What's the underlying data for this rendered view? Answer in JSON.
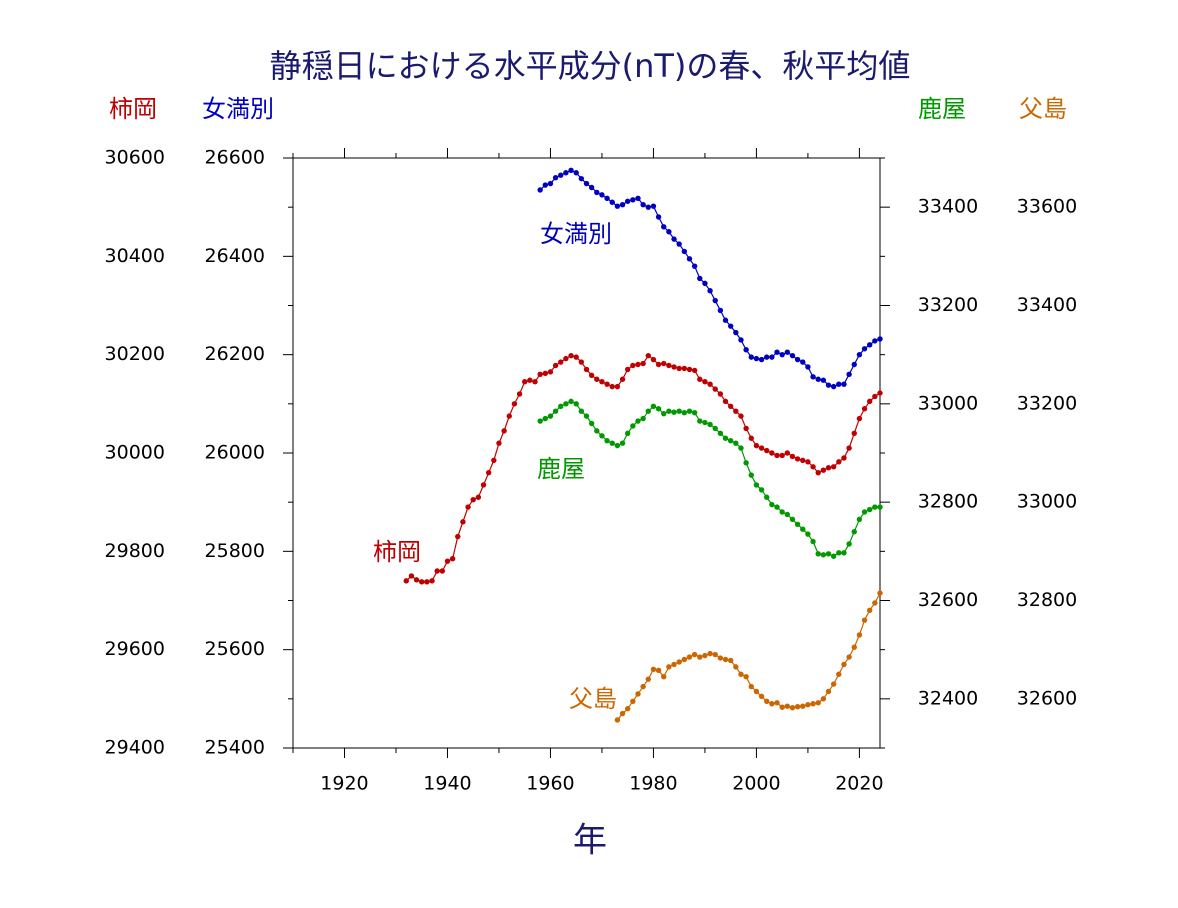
{
  "chart_data": {
    "type": "line",
    "title": "静穏日における水平成分(nT)の春、秋平均値",
    "xlabel": "年",
    "xlim": [
      1910,
      2024
    ],
    "xticks": [
      1920,
      1940,
      1960,
      1980,
      2000,
      2020
    ],
    "x": [
      1932,
      1933,
      1934,
      1935,
      1936,
      1937,
      1938,
      1939,
      1940,
      1941,
      1942,
      1943,
      1944,
      1945,
      1946,
      1947,
      1948,
      1949,
      1950,
      1951,
      1952,
      1953,
      1954,
      1955,
      1956,
      1957,
      1958,
      1959,
      1960,
      1961,
      1962,
      1963,
      1964,
      1965,
      1966,
      1967,
      1968,
      1969,
      1970,
      1971,
      1972,
      1973,
      1974,
      1975,
      1976,
      1977,
      1978,
      1979,
      1980,
      1981,
      1982,
      1983,
      1984,
      1985,
      1986,
      1987,
      1988,
      1989,
      1990,
      1991,
      1992,
      1993,
      1994,
      1995,
      1996,
      1997,
      1998,
      1999,
      2000,
      2001,
      2002,
      2003,
      2004,
      2005,
      2006,
      2007,
      2008,
      2009,
      2010,
      2011,
      2012,
      2013,
      2014,
      2015,
      2016,
      2017,
      2018,
      2019,
      2020,
      2021,
      2022,
      2023,
      2024
    ],
    "axes": [
      {
        "side": "left",
        "ylim": [
          29400,
          30600
        ],
        "yticks": [
          29400,
          29600,
          29800,
          30000,
          30200,
          30400,
          30600
        ]
      },
      {
        "side": "left",
        "ylim": [
          25400,
          26600
        ],
        "yticks": [
          25400,
          25600,
          25800,
          26000,
          26200,
          26400,
          26600
        ]
      },
      {
        "side": "right",
        "ylim": [
          32300,
          33500
        ],
        "yticks": [
          32400,
          32600,
          32800,
          33000,
          33200,
          33400
        ]
      },
      {
        "side": "right",
        "ylim": [
          32500,
          33700
        ],
        "yticks": [
          32600,
          32800,
          33000,
          33200,
          33400,
          33600
        ]
      }
    ],
    "series": [
      {
        "name": "柿岡",
        "color": "#c00000",
        "axis": 0,
        "values": [
          29740,
          29750,
          29742,
          29738,
          29738,
          29740,
          29760,
          29760,
          29780,
          29785,
          29830,
          29860,
          29890,
          29905,
          29910,
          29935,
          29960,
          29985,
          30020,
          30045,
          30075,
          30100,
          30120,
          30145,
          30148,
          30145,
          30160,
          30162,
          30165,
          30178,
          30185,
          30192,
          30198,
          30195,
          30185,
          30170,
          30158,
          30150,
          30145,
          30140,
          30135,
          30135,
          30150,
          30170,
          30178,
          30180,
          30182,
          30198,
          30190,
          30180,
          30182,
          30178,
          30175,
          30172,
          30172,
          30170,
          30168,
          30150,
          30145,
          30140,
          30130,
          30120,
          30105,
          30095,
          30085,
          30075,
          30050,
          30030,
          30015,
          30010,
          30005,
          30000,
          29995,
          29995,
          30000,
          29993,
          29988,
          29985,
          29982,
          29972,
          29960,
          29965,
          29970,
          29972,
          29982,
          29990,
          30010,
          30040,
          30070,
          30090,
          30105,
          30115,
          30122
        ]
      },
      {
        "name": "女満別",
        "color": "#0000c0",
        "axis": 1,
        "values": [
          null,
          null,
          null,
          null,
          null,
          null,
          null,
          null,
          null,
          null,
          null,
          null,
          null,
          null,
          null,
          null,
          null,
          null,
          null,
          null,
          null,
          null,
          null,
          null,
          null,
          null,
          26535,
          26545,
          26548,
          26560,
          26565,
          26570,
          26575,
          26570,
          26558,
          26548,
          26540,
          26530,
          26525,
          26518,
          26510,
          26502,
          26505,
          26512,
          26515,
          26518,
          26505,
          26500,
          26502,
          26480,
          26460,
          26450,
          26435,
          26425,
          26410,
          26395,
          26380,
          26355,
          26345,
          26330,
          26310,
          26290,
          26270,
          26258,
          26245,
          26230,
          26210,
          26195,
          26192,
          26190,
          26195,
          26195,
          26205,
          26200,
          26205,
          26198,
          26190,
          26185,
          26175,
          26155,
          26150,
          26148,
          26138,
          26135,
          26140,
          26140,
          26160,
          26180,
          26200,
          26212,
          26220,
          26228,
          26232
        ]
      },
      {
        "name": "鹿屋",
        "color": "#009900",
        "axis": 2,
        "values": [
          null,
          null,
          null,
          null,
          null,
          null,
          null,
          null,
          null,
          null,
          null,
          null,
          null,
          null,
          null,
          null,
          null,
          null,
          null,
          null,
          null,
          null,
          null,
          null,
          null,
          null,
          32965,
          32970,
          32975,
          32985,
          32995,
          33000,
          33005,
          33000,
          32985,
          32975,
          32960,
          32945,
          32935,
          32925,
          32920,
          32915,
          32920,
          32940,
          32955,
          32965,
          32970,
          32985,
          32995,
          32990,
          32980,
          32985,
          32983,
          32985,
          32982,
          32985,
          32982,
          32965,
          32962,
          32958,
          32950,
          32940,
          32930,
          32925,
          32920,
          32910,
          32880,
          32855,
          32835,
          32825,
          32810,
          32795,
          32790,
          32780,
          32775,
          32765,
          32755,
          32745,
          32735,
          32720,
          32695,
          32693,
          32695,
          32690,
          32697,
          32697,
          32715,
          32740,
          32765,
          32780,
          32785,
          32790,
          32790
        ]
      },
      {
        "name": "父島",
        "color": "#cc6600",
        "axis": 3,
        "values": [
          null,
          null,
          null,
          null,
          null,
          null,
          null,
          null,
          null,
          null,
          null,
          null,
          null,
          null,
          null,
          null,
          null,
          null,
          null,
          null,
          null,
          null,
          null,
          null,
          null,
          null,
          null,
          null,
          null,
          null,
          null,
          null,
          null,
          null,
          null,
          null,
          null,
          null,
          null,
          null,
          null,
          32557,
          32570,
          32580,
          32595,
          32610,
          32625,
          32640,
          32660,
          32658,
          32645,
          32665,
          32670,
          32675,
          32680,
          32685,
          32690,
          32685,
          32688,
          32692,
          32690,
          32683,
          32680,
          32678,
          32665,
          32650,
          32645,
          32625,
          32615,
          32605,
          32595,
          32590,
          32592,
          32583,
          32585,
          32582,
          32584,
          32585,
          32588,
          32590,
          32592,
          32600,
          32615,
          32630,
          32650,
          32670,
          32685,
          32705,
          32730,
          32760,
          32780,
          32795,
          32815
        ]
      }
    ]
  }
}
